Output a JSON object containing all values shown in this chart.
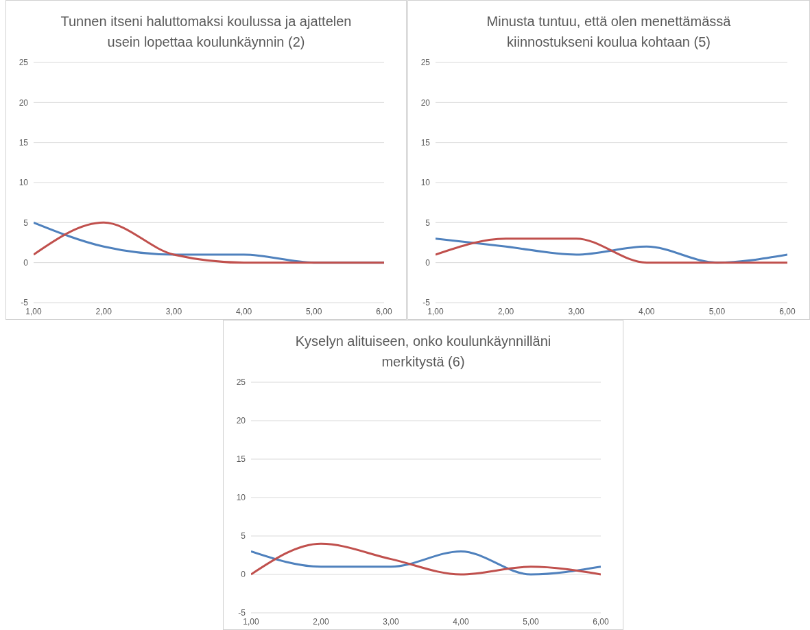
{
  "chart_data": [
    {
      "type": "line",
      "title": "Tunnen itseni haluttomaksi koulussa ja ajattelen usein lopettaa koulunkäynnin (2)",
      "categories": [
        "1,00",
        "2,00",
        "3,00",
        "4,00",
        "5,00",
        "6,00"
      ],
      "series": [
        {
          "color": "#4f81bd",
          "values": [
            5,
            2,
            1,
            1,
            0,
            0
          ]
        },
        {
          "color": "#c0504d",
          "values": [
            1,
            5,
            1,
            0,
            0,
            0
          ]
        }
      ],
      "ylim": [
        -5,
        25
      ],
      "yticks": [
        -5,
        0,
        5,
        10,
        15,
        20,
        25
      ],
      "grid": "y"
    },
    {
      "type": "line",
      "title": "Minusta tuntuu, että olen menettämässä kiinnostukseni koulua kohtaan (5)",
      "categories": [
        "1,00",
        "2,00",
        "3,00",
        "4,00",
        "5,00",
        "6,00"
      ],
      "series": [
        {
          "color": "#4f81bd",
          "values": [
            3,
            2,
            1,
            2,
            0,
            1
          ]
        },
        {
          "color": "#c0504d",
          "values": [
            1,
            3,
            3,
            0,
            0,
            0
          ]
        }
      ],
      "ylim": [
        -5,
        25
      ],
      "yticks": [
        -5,
        0,
        5,
        10,
        15,
        20,
        25
      ],
      "grid": "y"
    },
    {
      "type": "line",
      "title": "Kyselyn alituiseen, onko koulunkäynnilläni merkitystä (6)",
      "categories": [
        "1,00",
        "2,00",
        "3,00",
        "4,00",
        "5,00",
        "6,00"
      ],
      "series": [
        {
          "color": "#4f81bd",
          "values": [
            3,
            1,
            1,
            3,
            0,
            1
          ]
        },
        {
          "color": "#c0504d",
          "values": [
            0,
            4,
            2,
            0,
            1,
            0
          ]
        }
      ],
      "ylim": [
        -5,
        25
      ],
      "yticks": [
        -5,
        0,
        5,
        10,
        15,
        20,
        25
      ],
      "grid": "y"
    }
  ]
}
